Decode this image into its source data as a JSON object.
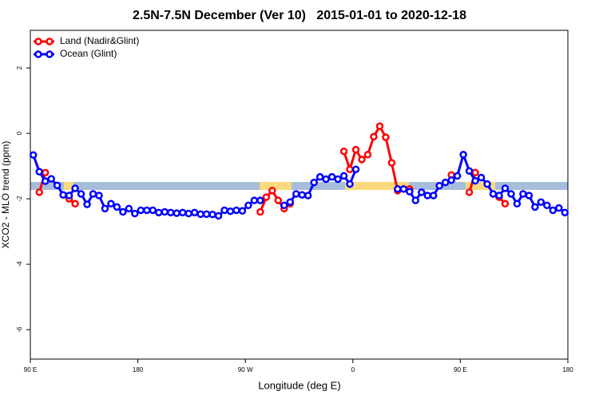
{
  "chart_data": {
    "type": "line",
    "title": "2.5N-7.5N December (Ver 10)   2015-01-01 to 2020-12-18",
    "x_label": "Longitude (deg E)",
    "y_label": "XCO2 - MLO trend (ppm)",
    "x": [
      92.5,
      97.5,
      102.5,
      107.5,
      112.5,
      117.5,
      122.5,
      127.5,
      132.5,
      137.5,
      142.5,
      147.5,
      152.5,
      157.5,
      162.5,
      167.5,
      172.5,
      177.5,
      182.5,
      187.5,
      192.5,
      197.5,
      202.5,
      207.5,
      212.5,
      217.5,
      222.5,
      227.5,
      232.5,
      237.5,
      242.5,
      247.5,
      252.5,
      257.5,
      262.5,
      267.5,
      272.5,
      277.5,
      282.5,
      287.5,
      292.5,
      297.5,
      302.5,
      307.5,
      312.5,
      317.5,
      322.5,
      327.5,
      332.5,
      337.5,
      342.5,
      347.5,
      352.5,
      357.5,
      362.5,
      367.5,
      372.5,
      377.5,
      382.5,
      387.5,
      392.5,
      397.5,
      402.5,
      407.5,
      412.5,
      417.5,
      422.5,
      427.5,
      432.5,
      437.5,
      442.5,
      447.5,
      452.5,
      457.5,
      462.5,
      467.5,
      472.5,
      477.5,
      482.5,
      487.5,
      492.5,
      497.5,
      502.5,
      507.5,
      512.5,
      517.5,
      522.5,
      527.5,
      532.5,
      537.5
    ],
    "series": [
      {
        "name": "Land (Nadir&Glint)",
        "color": "#ff0000",
        "values": [
          null,
          -1.8,
          -1.2,
          null,
          null,
          null,
          -2.0,
          -2.15,
          null,
          null,
          null,
          null,
          null,
          null,
          null,
          null,
          null,
          null,
          null,
          null,
          null,
          null,
          null,
          null,
          null,
          null,
          null,
          null,
          null,
          null,
          null,
          null,
          null,
          null,
          null,
          null,
          null,
          null,
          -2.4,
          -1.95,
          -1.75,
          -2.05,
          -2.3,
          -2.15,
          null,
          null,
          null,
          null,
          null,
          null,
          null,
          null,
          -0.55,
          -1.1,
          -0.5,
          -0.8,
          -0.65,
          -0.1,
          0.22,
          -0.12,
          -0.9,
          -1.75,
          -1.7,
          -1.7,
          null,
          null,
          null,
          null,
          null,
          null,
          -1.27,
          null,
          null,
          -1.8,
          -1.2,
          null,
          null,
          null,
          -1.95,
          -2.15,
          null,
          null,
          null,
          null,
          null,
          null,
          null,
          null,
          null,
          null
        ]
      },
      {
        "name": "Ocean (Glint)",
        "color": "#0000ff",
        "values": [
          -0.66,
          -1.17,
          -1.46,
          -1.39,
          -1.59,
          -1.88,
          -1.9,
          -1.68,
          -1.85,
          -2.17,
          -1.85,
          -1.9,
          -2.3,
          -2.15,
          -2.25,
          -2.4,
          -2.3,
          -2.45,
          -2.35,
          -2.35,
          -2.35,
          -2.42,
          -2.4,
          -2.42,
          -2.44,
          -2.42,
          -2.45,
          -2.42,
          -2.47,
          -2.47,
          -2.48,
          -2.52,
          -2.35,
          -2.38,
          -2.35,
          -2.37,
          -2.2,
          -2.05,
          -2.05,
          null,
          null,
          null,
          -2.2,
          -2.1,
          -1.85,
          -1.88,
          -1.9,
          -1.5,
          -1.33,
          -1.4,
          -1.33,
          -1.4,
          -1.3,
          -1.55,
          -1.1,
          null,
          null,
          null,
          null,
          null,
          null,
          -1.7,
          -1.7,
          -1.78,
          -2.05,
          -1.8,
          -1.9,
          -1.9,
          -1.6,
          -1.5,
          -1.43,
          -1.3,
          -0.65,
          -1.15,
          -1.45,
          -1.35,
          -1.55,
          -1.85,
          -1.9,
          -1.68,
          -1.85,
          -2.15,
          -1.85,
          -1.9,
          -2.25,
          -2.1,
          -2.2,
          -2.35,
          -2.28,
          -2.42
        ]
      }
    ],
    "xlim": [
      90,
      540
    ],
    "xticks": [
      {
        "value": 90,
        "label": "90 E"
      },
      180,
      {
        "value": 270,
        "label": "90 W"
      },
      {
        "value": 360,
        "label": "0"
      },
      {
        "value": 450,
        "label": "90 E"
      },
      {
        "value": 540,
        "label": "180"
      }
    ],
    "ylim": [
      -6.9,
      3.15
    ],
    "yticks": [
      -6,
      -4,
      -2,
      0,
      2
    ],
    "legend": "top-left"
  }
}
